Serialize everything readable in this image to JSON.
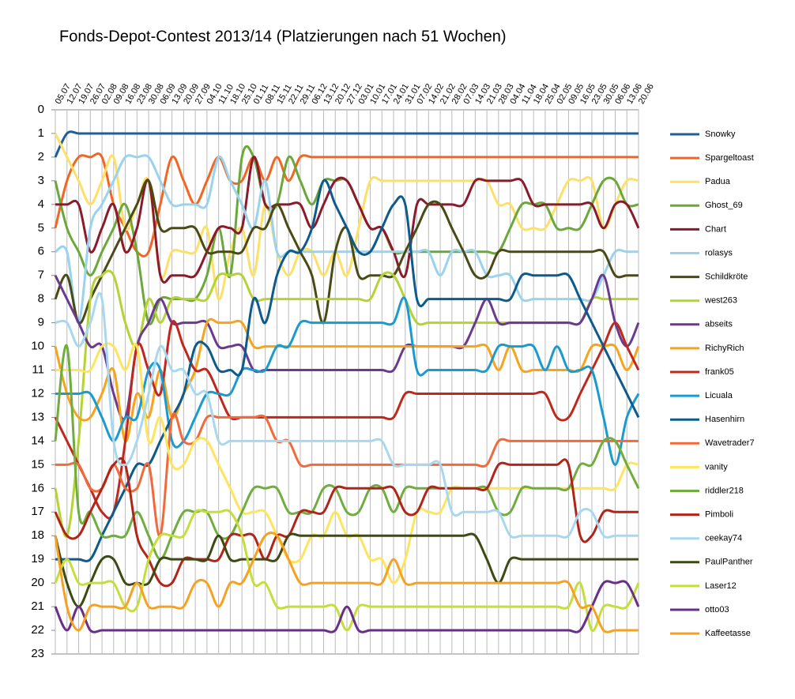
{
  "chart_data": {
    "type": "line",
    "title": "Fonds-Depot-Contest 2013/14 (Platzierungen nach 51 Wochen)",
    "categories": [
      "05.07",
      "12.07",
      "19.07",
      "26.07",
      "02.08",
      "09.08",
      "16.08",
      "23.08",
      "30.08",
      "06.09",
      "13.09",
      "20.09",
      "27.09",
      "04.10",
      "11.10",
      "18.10",
      "25.10",
      "01.11",
      "08.11",
      "15.11",
      "22.11",
      "29.11",
      "06.12",
      "13.12",
      "20.12",
      "27.12",
      "03.01",
      "10.01",
      "17.01",
      "24.01",
      "31.01",
      "07.02",
      "14.02",
      "21.02",
      "28.02",
      "07.03",
      "14.03",
      "21.03",
      "28.03",
      "04.04",
      "11.04",
      "18.04",
      "25.04",
      "02.05",
      "09.05",
      "16.05",
      "23.05",
      "30.05",
      "06.06",
      "13.06",
      "20.06"
    ],
    "ylim": [
      0,
      23
    ],
    "yticks": [
      0,
      1,
      2,
      3,
      4,
      5,
      6,
      7,
      8,
      9,
      10,
      11,
      12,
      13,
      14,
      15,
      16,
      17,
      18,
      19,
      20,
      21,
      22,
      23
    ],
    "y_inverted": true,
    "grid": true,
    "legend": "right",
    "series": [
      {
        "name": "Snowky",
        "color": "#1f5f99",
        "values": [
          2,
          1,
          1,
          1,
          1,
          1,
          1,
          1,
          1,
          1,
          1,
          1,
          1,
          1,
          1,
          1,
          1,
          1,
          1,
          1,
          1,
          1,
          1,
          1,
          1,
          1,
          1,
          1,
          1,
          1,
          1,
          1,
          1,
          1,
          1,
          1,
          1,
          1,
          1,
          1,
          1,
          1,
          1,
          1,
          1,
          1,
          1,
          1,
          1,
          1,
          1
        ]
      },
      {
        "name": "Spargeltoast",
        "color": "#f26522",
        "values": [
          5,
          3,
          2,
          2,
          2,
          4,
          5,
          6,
          6,
          4,
          2,
          3,
          4,
          3,
          2,
          3,
          3,
          2,
          3,
          2,
          3,
          2,
          2,
          2,
          2,
          2,
          2,
          2,
          2,
          2,
          2,
          2,
          2,
          2,
          2,
          2,
          2,
          2,
          2,
          2,
          2,
          2,
          2,
          2,
          2,
          2,
          2,
          2,
          2,
          2,
          2
        ]
      },
      {
        "name": "Padua",
        "color": "#ffe066",
        "values": [
          1,
          2,
          3,
          4,
          3,
          2,
          5,
          4,
          3,
          7,
          6,
          6,
          6,
          5,
          8,
          6,
          5,
          7,
          4,
          6,
          7,
          6,
          6,
          7,
          6,
          7,
          5,
          3,
          3,
          3,
          3,
          3,
          3,
          3,
          3,
          3,
          3,
          3,
          4,
          4,
          5,
          5,
          5,
          4,
          3,
          3,
          3,
          5,
          4,
          3,
          3
        ]
      },
      {
        "name": "Ghost_69",
        "color": "#6aa83a",
        "values": [
          3,
          5,
          6,
          7,
          6,
          5,
          4,
          6,
          9,
          8,
          8,
          8,
          8,
          7,
          5,
          7,
          2,
          2,
          4,
          4,
          2,
          3,
          4,
          3,
          3,
          3,
          4,
          5,
          5,
          6,
          6,
          6,
          6,
          6,
          6,
          6,
          6,
          6,
          6,
          5,
          4,
          4,
          4,
          5,
          5,
          5,
          4,
          3,
          3,
          4,
          4
        ]
      },
      {
        "name": "Chart",
        "color": "#8b1a2b",
        "values": [
          4,
          4,
          4,
          6,
          5,
          4,
          6,
          5,
          3,
          7,
          7,
          7,
          7,
          6,
          5,
          5,
          5,
          2,
          4,
          4,
          4,
          4,
          5,
          4,
          3,
          3,
          4,
          5,
          5,
          6,
          7,
          4,
          4,
          4,
          4,
          4,
          3,
          3,
          3,
          3,
          3,
          4,
          4,
          4,
          4,
          4,
          4,
          5,
          4,
          4,
          5
        ]
      },
      {
        "name": "rolasys",
        "color": "#99d3f0",
        "values": [
          6,
          6,
          9,
          5,
          4,
          3,
          2,
          2,
          2,
          3,
          4,
          4,
          4,
          4,
          2,
          3,
          4,
          5,
          3,
          6,
          6,
          6,
          6,
          6,
          6,
          6,
          6,
          6,
          6,
          6,
          6,
          6,
          6,
          7,
          6,
          6,
          6,
          7,
          7,
          7,
          8,
          8,
          8,
          8,
          8,
          8,
          8,
          7,
          6,
          6,
          6
        ]
      },
      {
        "name": "Schildkröte",
        "color": "#4a4a15",
        "values": [
          8,
          7,
          9,
          8,
          7,
          6,
          5,
          4,
          3,
          5,
          5,
          5,
          5,
          6,
          6,
          6,
          6,
          5,
          5,
          4,
          5,
          6,
          7,
          9,
          6,
          5,
          7,
          7,
          7,
          7,
          6,
          5,
          4,
          4,
          5,
          6,
          7,
          7,
          6,
          6,
          6,
          6,
          6,
          6,
          6,
          6,
          6,
          6,
          7,
          7,
          7
        ]
      },
      {
        "name": "west263",
        "color": "#b5d334",
        "values": [
          16,
          18,
          14,
          8,
          7,
          7,
          9,
          10,
          8,
          9,
          8,
          8,
          8,
          8,
          7,
          7,
          7,
          8,
          8,
          8,
          8,
          8,
          8,
          8,
          8,
          8,
          8,
          8,
          7,
          7,
          8,
          9,
          9,
          9,
          9,
          9,
          9,
          9,
          9,
          9,
          9,
          9,
          9,
          9,
          9,
          9,
          8,
          8,
          8,
          8,
          8
        ]
      },
      {
        "name": "abseits",
        "color": "#6b3a8e",
        "values": [
          7,
          8,
          9,
          10,
          10,
          12,
          13,
          10,
          9,
          8,
          9,
          9,
          9,
          9,
          10,
          10,
          10,
          11,
          11,
          11,
          11,
          11,
          11,
          11,
          11,
          11,
          11,
          11,
          11,
          11,
          10,
          10,
          10,
          10,
          10,
          10,
          9,
          8,
          9,
          9,
          9,
          9,
          9,
          9,
          9,
          9,
          8,
          7,
          9,
          10,
          9
        ]
      },
      {
        "name": "RichyRich",
        "color": "#f7a31c",
        "values": [
          10,
          12,
          13,
          13,
          12,
          11,
          14,
          12,
          13,
          11,
          13,
          12,
          11,
          9,
          9,
          9,
          9,
          10,
          10,
          10,
          10,
          10,
          10,
          10,
          10,
          10,
          10,
          10,
          10,
          10,
          10,
          10,
          10,
          10,
          10,
          10,
          10,
          10,
          11,
          10,
          11,
          11,
          11,
          11,
          11,
          11,
          10,
          10,
          10,
          11,
          10
        ]
      },
      {
        "name": "frank05",
        "color": "#c0281e",
        "values": [
          13,
          14,
          15,
          16,
          17,
          17,
          14,
          10,
          11,
          12,
          9,
          10,
          11,
          11,
          12,
          13,
          13,
          13,
          13,
          13,
          13,
          13,
          13,
          13,
          13,
          13,
          13,
          13,
          13,
          13,
          12,
          12,
          12,
          12,
          12,
          12,
          12,
          12,
          12,
          12,
          12,
          12,
          12,
          13,
          13,
          12,
          11,
          10,
          9,
          10,
          11
        ]
      },
      {
        "name": "Licuala",
        "color": "#1a9bd0",
        "values": [
          12,
          12,
          12,
          12,
          13,
          14,
          13,
          13,
          11,
          11,
          14,
          14,
          13,
          12,
          12,
          12,
          11,
          11,
          11,
          10,
          10,
          9,
          9,
          9,
          9,
          9,
          9,
          9,
          9,
          9,
          8,
          11,
          11,
          11,
          11,
          11,
          11,
          11,
          10,
          10,
          10,
          10,
          11,
          10,
          11,
          11,
          11,
          13,
          15,
          13,
          12
        ]
      },
      {
        "name": "Hasenhirn",
        "color": "#0d5a8c",
        "values": [
          19,
          19,
          19,
          19,
          18,
          17,
          16,
          15,
          15,
          14,
          13,
          12,
          10,
          10,
          11,
          11,
          11,
          8,
          9,
          7,
          6,
          6,
          5,
          3,
          4,
          5,
          6,
          6,
          5,
          4,
          4,
          8,
          8,
          8,
          8,
          8,
          8,
          8,
          8,
          8,
          7,
          7,
          7,
          7,
          7,
          8,
          9,
          10,
          11,
          12,
          13
        ]
      },
      {
        "name": "Wavetrader7",
        "color": "#f26a3a",
        "values": [
          15,
          15,
          15,
          16,
          16,
          15,
          16,
          16,
          15,
          18,
          13,
          14,
          14,
          13,
          13,
          13,
          13,
          13,
          13,
          14,
          14,
          15,
          15,
          15,
          15,
          15,
          15,
          15,
          15,
          15,
          15,
          15,
          15,
          15,
          15,
          15,
          15,
          15,
          14,
          14,
          14,
          14,
          14,
          14,
          14,
          14,
          14,
          14,
          14,
          14,
          14
        ]
      },
      {
        "name": "vanity",
        "color": "#ffe45c",
        "values": [
          11,
          11,
          11,
          11,
          10,
          10,
          11,
          10,
          14,
          13,
          15,
          15,
          14,
          14,
          15,
          16,
          17,
          17,
          17,
          18,
          19,
          19,
          18,
          18,
          17,
          18,
          18,
          19,
          19,
          20,
          19,
          17,
          17,
          17,
          16,
          16,
          16,
          16,
          16,
          16,
          16,
          16,
          16,
          16,
          16,
          16,
          16,
          16,
          16,
          15,
          15
        ]
      },
      {
        "name": "riddler218",
        "color": "#6fae3e",
        "values": [
          14,
          10,
          17,
          17,
          18,
          18,
          18,
          17,
          18,
          19,
          18,
          17,
          17,
          17,
          18,
          18,
          17,
          16,
          16,
          16,
          17,
          17,
          17,
          16,
          16,
          17,
          17,
          16,
          16,
          17,
          16,
          16,
          16,
          16,
          16,
          16,
          16,
          16,
          17,
          17,
          16,
          16,
          16,
          16,
          16,
          15,
          15,
          14,
          14,
          15,
          16
        ]
      },
      {
        "name": "Pimboli",
        "color": "#b22318",
        "values": [
          17,
          18,
          18,
          17,
          16,
          15,
          15,
          18,
          19,
          20,
          20,
          19,
          19,
          19,
          19,
          18,
          18,
          18,
          19,
          18,
          18,
          17,
          17,
          17,
          16,
          16,
          16,
          16,
          16,
          16,
          17,
          17,
          16,
          16,
          16,
          16,
          16,
          16,
          15,
          15,
          15,
          15,
          15,
          15,
          15,
          18,
          18,
          17,
          17,
          17,
          17
        ]
      },
      {
        "name": "ceekay74",
        "color": "#a8d8f0",
        "values": [
          9,
          9,
          10,
          9,
          8,
          14,
          15,
          14,
          12,
          10,
          11,
          11,
          12,
          12,
          14,
          14,
          14,
          14,
          14,
          14,
          14,
          14,
          14,
          14,
          14,
          14,
          14,
          14,
          14,
          15,
          15,
          15,
          15,
          15,
          17,
          17,
          17,
          17,
          17,
          18,
          18,
          18,
          18,
          18,
          18,
          17,
          17,
          18,
          18,
          18,
          18
        ]
      },
      {
        "name": "PaulPanther",
        "color": "#3d4a12",
        "values": [
          18,
          20,
          21,
          20,
          19,
          19,
          20,
          20,
          20,
          19,
          19,
          19,
          19,
          19,
          18,
          19,
          19,
          19,
          19,
          19,
          18,
          18,
          18,
          18,
          18,
          18,
          18,
          18,
          18,
          18,
          18,
          18,
          18,
          18,
          18,
          18,
          18,
          19,
          20,
          19,
          19,
          19,
          19,
          19,
          19,
          19,
          19,
          19,
          19,
          19,
          19
        ]
      },
      {
        "name": "Laser12",
        "color": "#c5de3a",
        "values": [
          20,
          19,
          20,
          20,
          20,
          20,
          21,
          21,
          19,
          18,
          18,
          18,
          17,
          17,
          17,
          17,
          18,
          20,
          20,
          21,
          21,
          21,
          21,
          21,
          21,
          22,
          21,
          21,
          21,
          21,
          21,
          21,
          21,
          21,
          21,
          21,
          21,
          21,
          21,
          21,
          21,
          21,
          21,
          21,
          21,
          20,
          22,
          21,
          21,
          21,
          20
        ]
      },
      {
        "name": "otto03",
        "color": "#6a2e8a",
        "values": [
          21,
          22,
          21,
          22,
          22,
          22,
          22,
          22,
          22,
          22,
          22,
          22,
          22,
          22,
          22,
          22,
          22,
          22,
          22,
          22,
          22,
          22,
          22,
          22,
          22,
          21,
          22,
          22,
          22,
          22,
          22,
          22,
          22,
          22,
          22,
          22,
          22,
          22,
          22,
          22,
          22,
          22,
          22,
          22,
          22,
          22,
          21,
          20,
          20,
          20,
          21
        ]
      },
      {
        "name": "Kaffeetasse",
        "color": "#f7a122",
        "values": [
          18,
          21,
          22,
          21,
          21,
          21,
          21,
          20,
          21,
          21,
          21,
          21,
          20,
          20,
          21,
          20,
          20,
          19,
          18,
          18,
          19,
          20,
          20,
          20,
          20,
          20,
          20,
          20,
          20,
          19,
          20,
          20,
          20,
          20,
          20,
          20,
          20,
          20,
          20,
          20,
          20,
          20,
          20,
          20,
          20,
          21,
          21,
          22,
          22,
          22,
          22
        ]
      }
    ]
  }
}
